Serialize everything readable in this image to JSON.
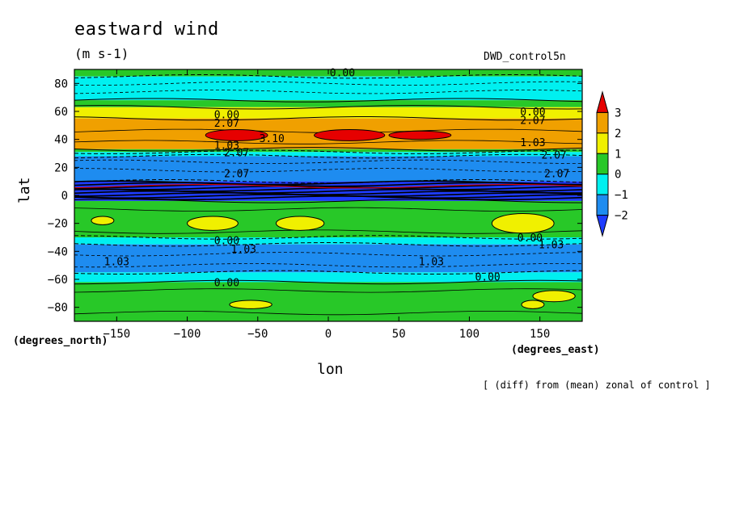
{
  "chart_data": {
    "type": "heatmap",
    "title": "eastward wind",
    "units": "(m s-1)",
    "run_label": "DWD_control5n",
    "xlabel": "lon",
    "ylabel": "lat",
    "x_unit_label": "(degrees_east)",
    "y_unit_label": "(degrees_north)",
    "footnote": "[ (diff) from (mean) zonal of control ]",
    "xlim": [
      -180,
      180
    ],
    "ylim": [
      -90,
      90
    ],
    "x_ticks": [
      -150,
      -100,
      -50,
      0,
      50,
      100,
      150
    ],
    "x_tick_labels": [
      "−150",
      "−100",
      "−50",
      "0",
      "50",
      "100",
      "150"
    ],
    "y_ticks": [
      80,
      60,
      40,
      20,
      0,
      -20,
      -40,
      -60,
      -80
    ],
    "y_tick_labels": [
      "80",
      "60",
      "40",
      "20",
      "0",
      "−20",
      "−40",
      "−60",
      "−80"
    ],
    "colorbar": {
      "ticks": [
        3,
        2,
        1,
        0,
        -1,
        -2
      ],
      "tick_labels": [
        "3",
        "2",
        "1",
        "0",
        "−1",
        "−2"
      ],
      "levels": [
        {
          "min": 3,
          "max": null,
          "color": "#e60000"
        },
        {
          "min": 2,
          "max": 3,
          "color": "#f0a000"
        },
        {
          "min": 1,
          "max": 2,
          "color": "#f0f000"
        },
        {
          "min": 0,
          "max": 1,
          "color": "#28c828"
        },
        {
          "min": -1,
          "max": 0,
          "color": "#00f0f0"
        },
        {
          "min": -2,
          "max": -1,
          "color": "#1e8cf0"
        },
        {
          "min": null,
          "max": -2,
          "color": "#1e3cff"
        }
      ]
    },
    "zonal_bands": [
      {
        "lat_top": 90,
        "lat_bottom": 85,
        "value": 0.5
      },
      {
        "lat_top": 85,
        "lat_bottom": 68,
        "value": -0.5
      },
      {
        "lat_top": 68,
        "lat_bottom": 63,
        "value": 0.5
      },
      {
        "lat_top": 63,
        "lat_bottom": 55,
        "value": 1.5
      },
      {
        "lat_top": 55,
        "lat_bottom": 33,
        "value": 2.5
      },
      {
        "lat_top": 33,
        "lat_bottom": 31,
        "value": 0.5
      },
      {
        "lat_top": 31,
        "lat_bottom": 28,
        "value": -0.5
      },
      {
        "lat_top": 28,
        "lat_bottom": 10,
        "value": -1.5
      },
      {
        "lat_top": 10,
        "lat_bottom": -4,
        "value": -3
      },
      {
        "lat_top": -4,
        "lat_bottom": -30,
        "value": 0.5
      },
      {
        "lat_top": -30,
        "lat_bottom": -35,
        "value": -0.5
      },
      {
        "lat_top": -35,
        "lat_bottom": -55,
        "value": -1.5
      },
      {
        "lat_top": -55,
        "lat_bottom": -62,
        "value": -0.5
      },
      {
        "lat_top": -62,
        "lat_bottom": -90,
        "value": 0.5
      }
    ],
    "anomalies": [
      {
        "lon": -65,
        "lat": 43,
        "rlon": 22,
        "rlat": 4,
        "value": 3.1
      },
      {
        "lon": 15,
        "lat": 43,
        "rlon": 25,
        "rlat": 4,
        "value": 3.1
      },
      {
        "lon": 65,
        "lat": 43,
        "rlon": 22,
        "rlat": 3,
        "value": 3.1
      },
      {
        "lon": -160,
        "lat": -18,
        "rlon": 8,
        "rlat": 3,
        "value": 1.5
      },
      {
        "lon": -82,
        "lat": -20,
        "rlon": 18,
        "rlat": 5,
        "value": 1.5
      },
      {
        "lon": -20,
        "lat": -20,
        "rlon": 17,
        "rlat": 5,
        "value": 1.5
      },
      {
        "lon": 138,
        "lat": -20,
        "rlon": 22,
        "rlat": 7,
        "value": 1.5
      },
      {
        "lon": -55,
        "lat": -78,
        "rlon": 15,
        "rlat": 3,
        "value": 1.5
      },
      {
        "lon": 160,
        "lat": -72,
        "rlon": 15,
        "rlat": 4,
        "value": 1.5
      },
      {
        "lon": 145,
        "lat": -78,
        "rlon": 8,
        "rlat": 3,
        "value": 1.5
      }
    ],
    "contour_labels": [
      {
        "text": "0.00",
        "lon": 10,
        "lat": 88
      },
      {
        "text": "0.00",
        "lon": -72,
        "lat": 58
      },
      {
        "text": "2.07",
        "lon": -72,
        "lat": 52
      },
      {
        "text": "3.10",
        "lon": -40,
        "lat": 41
      },
      {
        "text": "1.03",
        "lon": -72,
        "lat": 36
      },
      {
        "text": "2.07",
        "lon": -65,
        "lat": 31
      },
      {
        "text": "2.07",
        "lon": -65,
        "lat": 16
      },
      {
        "text": "0.00",
        "lon": -72,
        "lat": -32
      },
      {
        "text": "1.03",
        "lon": -60,
        "lat": -38
      },
      {
        "text": "1.03",
        "lon": -150,
        "lat": -47
      },
      {
        "text": "1.03",
        "lon": 73,
        "lat": -47
      },
      {
        "text": "0.00",
        "lon": -72,
        "lat": -62
      },
      {
        "text": "0.00",
        "lon": 113,
        "lat": -58
      },
      {
        "text": "0.00",
        "lon": 145,
        "lat": 60
      },
      {
        "text": "2.07",
        "lon": 145,
        "lat": 54
      },
      {
        "text": "1.03",
        "lon": 145,
        "lat": 38
      },
      {
        "text": "2.07",
        "lon": 160,
        "lat": 29
      },
      {
        "text": "2.07",
        "lon": 162,
        "lat": 16
      },
      {
        "text": "0.00",
        "lon": 143,
        "lat": -30
      },
      {
        "text": "1.03",
        "lon": 158,
        "lat": -35
      }
    ]
  }
}
